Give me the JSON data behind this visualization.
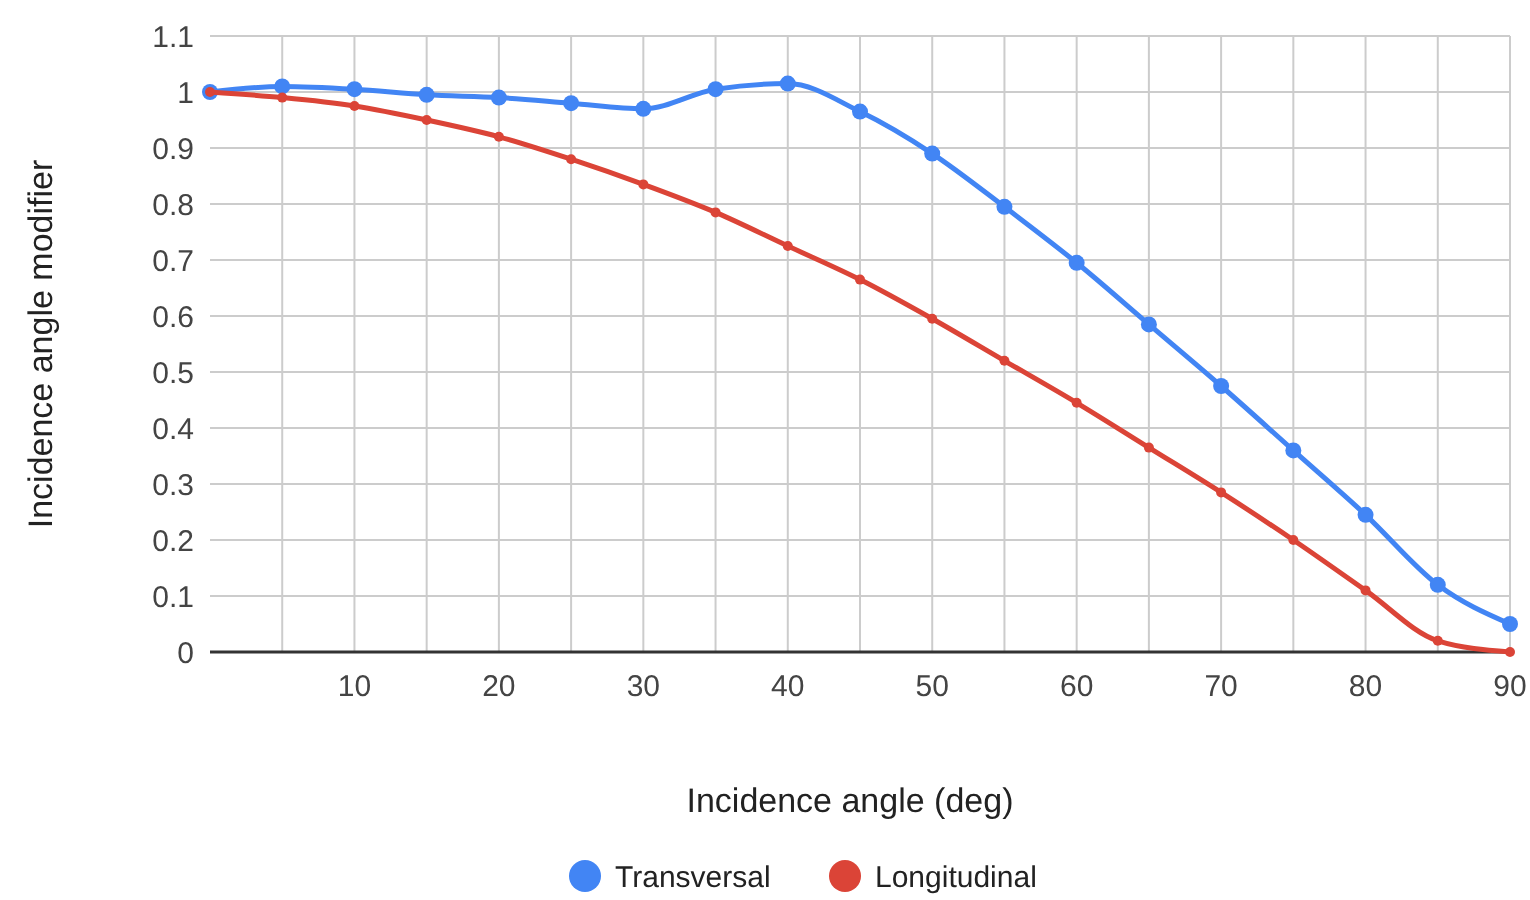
{
  "chart_data": {
    "type": "line",
    "xlabel": "Incidence angle (deg)",
    "ylabel": "Incidence angle modifier",
    "x": [
      0,
      5,
      10,
      15,
      20,
      25,
      30,
      35,
      40,
      45,
      50,
      55,
      60,
      65,
      70,
      75,
      80,
      85,
      90
    ],
    "series": [
      {
        "name": "Transversal",
        "color": "#4285f4",
        "values": [
          1.0,
          1.01,
          1.005,
          0.995,
          0.99,
          0.98,
          0.97,
          1.005,
          1.015,
          0.965,
          0.89,
          0.795,
          0.695,
          0.585,
          0.475,
          0.36,
          0.245,
          0.12,
          0.05
        ]
      },
      {
        "name": "Longitudinal",
        "color": "#db4437",
        "values": [
          1.0,
          0.99,
          0.975,
          0.95,
          0.92,
          0.88,
          0.835,
          0.785,
          0.725,
          0.665,
          0.595,
          0.52,
          0.445,
          0.365,
          0.285,
          0.2,
          0.11,
          0.02,
          0
        ]
      }
    ],
    "xlim": [
      0,
      90
    ],
    "xticks": [
      {
        "value": 5,
        "label": null
      },
      10,
      {
        "value": 15,
        "label": null
      },
      20,
      {
        "value": 25,
        "label": null
      },
      30,
      {
        "value": 35,
        "label": null
      },
      40,
      {
        "value": 45,
        "label": null
      },
      50,
      {
        "value": 55,
        "label": null
      },
      60,
      {
        "value": 65,
        "label": null
      },
      70,
      {
        "value": 75,
        "label": null
      },
      80,
      {
        "value": 85,
        "label": null
      },
      90
    ],
    "ylim": [
      0,
      1.1
    ],
    "yticks": [
      0,
      0.1,
      0.2,
      0.3,
      0.4,
      0.5,
      0.6,
      0.7,
      0.8,
      0.9,
      1,
      1.1
    ],
    "grid": true,
    "legend": "bottom",
    "marker": "circle",
    "line_style": "solid"
  }
}
